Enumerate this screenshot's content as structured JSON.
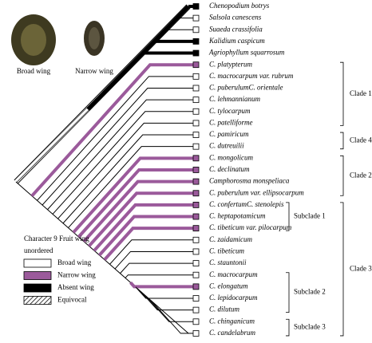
{
  "images": [
    {
      "label": "Broad wing"
    },
    {
      "label": "Narrow wing"
    }
  ],
  "taxa": [
    "Chenopodium  botrys",
    "Salsola canescens",
    "Suaeda crassifolia",
    "Kalidium caspicum",
    "Agriophyllum squarrosum",
    "C. platypterum",
    "C. macrocarpum var. rubrum",
    "C. puberulumC. orientale",
    "C. lehmannianum",
    "C. tylocarpum",
    "C. patelliforme",
    "C. pamiricum",
    "C. dutreuilii",
    "C. mongolicum",
    "C. declinatum",
    "Camphorosma monspeliaca",
    "C. puberulum var. ellipsocarpum",
    "C. confertumC. stenolepis",
    "C. heptapotamicum",
    "C. tibeticum var. pilocarpum",
    "C. zaidamicum",
    "C. tibeticum",
    "C. stauntonii",
    "C. macrocarpum",
    "C. elongatum",
    "C. lepidocarpum",
    "C. dilutum",
    "C. chinganicum",
    "C. candelabrum"
  ],
  "clades": [
    {
      "label": "Clade 1"
    },
    {
      "label": "Clade 4"
    },
    {
      "label": "Clade 2"
    },
    {
      "label": "Clade 3"
    }
  ],
  "subclades": [
    {
      "label": "Subclade 1"
    },
    {
      "label": "Subclade 2"
    },
    {
      "label": "Subclade 3"
    }
  ],
  "legend": {
    "title": "Character 9 Fruit wing",
    "subtitle": "unordered",
    "items": [
      "Broad wing",
      "Narrow wing",
      "Absent wing",
      "Equivocal"
    ]
  }
}
